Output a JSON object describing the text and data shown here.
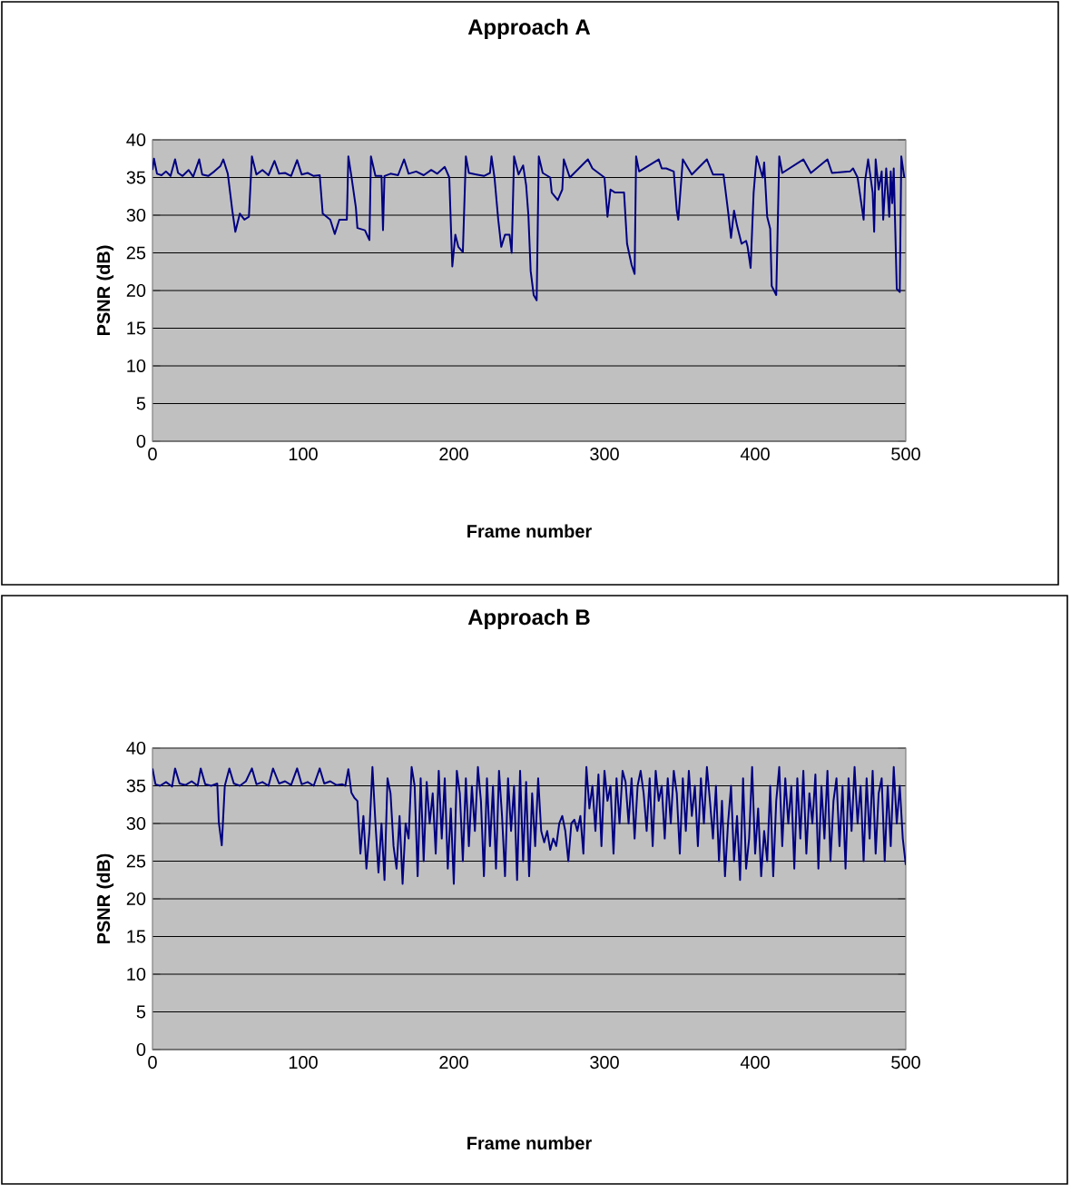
{
  "chart_data": [
    {
      "type": "line",
      "title": "Approach A",
      "xlabel": "Frame number",
      "ylabel": "PSNR (dB)",
      "xlim": [
        0,
        500
      ],
      "ylim": [
        0,
        40
      ],
      "xticks": [
        0,
        100,
        200,
        300,
        400,
        500
      ],
      "yticks": [
        0,
        5,
        10,
        15,
        20,
        25,
        30,
        35,
        40
      ],
      "grid": "y",
      "marker": "none",
      "line_style": "solid",
      "series": [
        {
          "color": "#000080",
          "x": [
            0,
            1,
            3,
            6,
            9,
            12,
            15,
            17,
            20,
            24,
            27,
            31,
            33,
            37,
            41,
            45,
            47,
            50,
            53,
            55,
            58,
            61,
            64,
            66,
            69,
            73,
            77,
            81,
            84,
            88,
            92,
            96,
            99,
            103,
            107,
            111,
            113,
            118,
            121,
            124,
            129,
            130,
            132,
            135,
            136,
            141,
            144,
            145,
            148,
            152,
            153,
            154,
            158,
            163,
            167,
            170,
            175,
            180,
            185,
            189,
            194,
            197,
            198,
            199,
            201,
            203,
            206,
            208,
            210,
            215,
            220,
            224,
            225,
            227,
            229.5,
            231.5,
            234,
            237,
            238.4,
            240,
            243,
            246,
            248,
            249.5,
            251,
            253,
            255,
            256.4,
            259,
            264,
            265,
            269,
            272,
            273,
            277,
            289,
            292,
            300,
            302,
            304,
            307,
            313,
            315,
            318,
            320,
            321,
            323,
            336,
            338,
            341,
            346,
            348,
            349,
            352,
            358,
            368,
            372,
            379,
            382,
            384,
            386,
            388,
            391,
            394,
            395,
            397,
            399,
            401,
            405,
            406,
            408,
            410,
            411,
            414,
            416,
            418,
            432,
            437,
            448,
            451,
            463,
            465,
            468,
            472,
            473,
            475,
            478,
            479,
            480,
            482,
            484,
            485,
            487,
            489,
            490,
            491,
            492,
            494,
            496,
            497,
            499
          ],
          "values": [
            36,
            37.5,
            35.5,
            35.3,
            35.8,
            35.2,
            37.4,
            35.6,
            35.2,
            36,
            35.1,
            37.4,
            35.4,
            35.2,
            35.8,
            36.5,
            37.4,
            35.5,
            30.6,
            27.8,
            30.2,
            29.4,
            29.8,
            37.8,
            35.4,
            36,
            35.3,
            37.2,
            35.5,
            35.6,
            35.2,
            37.3,
            35.4,
            35.6,
            35.2,
            35.3,
            30.2,
            29.4,
            27.5,
            29.4,
            29.4,
            37.8,
            35.2,
            31,
            28.3,
            28,
            26.7,
            37.8,
            35.2,
            35.2,
            28,
            35.2,
            35.5,
            35.3,
            37.4,
            35.5,
            35.8,
            35.3,
            36,
            35.5,
            36.4,
            35,
            29,
            23.2,
            27.4,
            25.8,
            25.1,
            37.8,
            35.6,
            35.4,
            35.2,
            35.6,
            37.8,
            35,
            29.4,
            25.8,
            27.4,
            27.4,
            25,
            37.8,
            35.4,
            36.6,
            34,
            30,
            22.6,
            19.4,
            18.7,
            37.8,
            35.6,
            35,
            33,
            32,
            33.4,
            37.4,
            35,
            37.4,
            36.2,
            35,
            29.8,
            33.4,
            33,
            33,
            26.2,
            23.4,
            22.2,
            37.8,
            35.8,
            37.4,
            36.2,
            36.2,
            35.8,
            30.6,
            29.4,
            37.4,
            35.4,
            37.4,
            35.4,
            35.4,
            30.6,
            27,
            30.6,
            28.6,
            26.2,
            26.6,
            25.8,
            23,
            33,
            37.8,
            35,
            37,
            29.8,
            28.2,
            20.6,
            19.4,
            37.8,
            35.6,
            37.4,
            35.6,
            37.4,
            35.6,
            35.8,
            36.2,
            35,
            29.4,
            34.6,
            37.4,
            33,
            27.8,
            37.4,
            33.4,
            35.8,
            29.4,
            36.2,
            29.8,
            35.8,
            31.6,
            36.2,
            20.2,
            19.8,
            37.8,
            35
          ]
        }
      ]
    },
    {
      "type": "line",
      "title": "Approach B",
      "xlabel": "Frame number",
      "ylabel": "PSNR (dB)",
      "xlim": [
        0,
        500
      ],
      "ylim": [
        0,
        40
      ],
      "xticks": [
        0,
        100,
        200,
        300,
        400,
        500
      ],
      "yticks": [
        0,
        5,
        10,
        15,
        20,
        25,
        30,
        35,
        40
      ],
      "grid": "y",
      "marker": "none",
      "line_style": "solid",
      "series": [
        {
          "color": "#000080",
          "x": [
            0,
            2,
            5,
            9,
            13,
            15,
            18,
            22,
            26,
            30,
            32,
            35,
            39,
            43,
            44,
            46,
            48,
            51,
            54,
            58,
            62,
            66,
            69,
            73,
            77,
            80,
            84,
            88,
            92,
            96,
            99,
            103,
            107,
            111,
            114,
            118,
            122,
            126,
            128,
            130,
            132,
            134,
            136,
            138,
            140,
            142,
            144,
            146,
            148,
            150,
            152,
            154,
            156,
            158,
            160,
            162,
            164,
            166,
            168,
            170,
            172,
            174,
            176,
            178,
            180,
            182,
            184,
            186,
            188,
            190,
            192,
            194,
            196,
            198,
            200,
            202,
            204,
            206,
            208,
            210,
            212,
            214,
            216,
            218,
            220,
            222,
            224,
            226,
            228,
            230,
            232,
            234,
            236,
            238,
            240,
            242,
            244,
            246,
            248,
            250,
            252,
            254,
            256,
            258,
            260,
            262,
            264,
            266,
            268,
            270,
            272,
            274,
            276,
            278,
            280,
            282,
            284,
            286,
            288,
            290,
            292,
            294,
            296,
            298,
            300,
            302,
            304,
            306,
            308,
            310,
            312,
            314,
            316,
            318,
            320,
            322,
            324,
            326,
            328,
            330,
            332,
            334,
            336,
            338,
            340,
            342,
            344,
            346,
            348,
            350,
            352,
            354,
            356,
            358,
            360,
            362,
            364,
            366,
            368,
            370,
            372,
            374,
            376,
            378,
            380,
            382,
            384,
            386,
            388,
            390,
            392,
            394,
            396,
            398,
            400,
            402,
            404,
            406,
            408,
            410,
            412,
            414,
            416,
            418,
            420,
            422,
            424,
            426,
            428,
            430,
            432,
            434,
            436,
            438,
            440,
            442,
            444,
            446,
            448,
            450,
            452,
            454,
            456,
            458,
            460,
            462,
            464,
            466,
            468,
            470,
            472,
            474,
            476,
            478,
            480,
            482,
            484,
            486,
            488,
            490,
            492,
            494,
            496,
            498,
            500
          ],
          "values": [
            37.3,
            35.2,
            35,
            35.5,
            34.9,
            37.3,
            35.3,
            35.1,
            35.6,
            35,
            37.3,
            35.2,
            35,
            35.3,
            30.2,
            27.1,
            35,
            37.3,
            35.3,
            35,
            35.6,
            37.3,
            35.2,
            35.5,
            35,
            37.3,
            35.3,
            35.6,
            35.1,
            37.3,
            35.2,
            35.5,
            35,
            37.3,
            35.3,
            35.6,
            35.1,
            35.2,
            35,
            37.2,
            34.1,
            33.4,
            33,
            26,
            31,
            24,
            29,
            37.5,
            30,
            23.5,
            30,
            22.5,
            36,
            34,
            27,
            24,
            31,
            22,
            30,
            28,
            37.5,
            35,
            23,
            36,
            25,
            35.5,
            30,
            34,
            26,
            37,
            28,
            36,
            24,
            32,
            22,
            37,
            34,
            25,
            36,
            27,
            35,
            29,
            37.5,
            33,
            23,
            36,
            27,
            35,
            24,
            37,
            31,
            23,
            36,
            29,
            35,
            22.5,
            37,
            25,
            35.5,
            23,
            34,
            27,
            36,
            29,
            27.5,
            29,
            26.5,
            28,
            27,
            30,
            31,
            29,
            25,
            30,
            30.5,
            29,
            31,
            26,
            37.5,
            32,
            35,
            29,
            36.5,
            27,
            37,
            33,
            35,
            26,
            36,
            30,
            37,
            35.5,
            30,
            36,
            28,
            35,
            37,
            34,
            29,
            36,
            27,
            37,
            33,
            35,
            28,
            36,
            30,
            37,
            34,
            26,
            36,
            29,
            37,
            31,
            35,
            27,
            36,
            30,
            37.5,
            33,
            28,
            35,
            25,
            33,
            23,
            30,
            35,
            25,
            31,
            22.5,
            36,
            24,
            28,
            37.5,
            26,
            32,
            23,
            29,
            25,
            35,
            23,
            33,
            37.5,
            27,
            36,
            30,
            35,
            24,
            36,
            28,
            37,
            26,
            34,
            30,
            36.5,
            24,
            35,
            28,
            37,
            25,
            33,
            36,
            27,
            35,
            24,
            36,
            29,
            37.5,
            30,
            35,
            25,
            36,
            28,
            37,
            26,
            34,
            36,
            25,
            35,
            27,
            37.5,
            30,
            35,
            28,
            24.5
          ]
        }
      ]
    }
  ]
}
